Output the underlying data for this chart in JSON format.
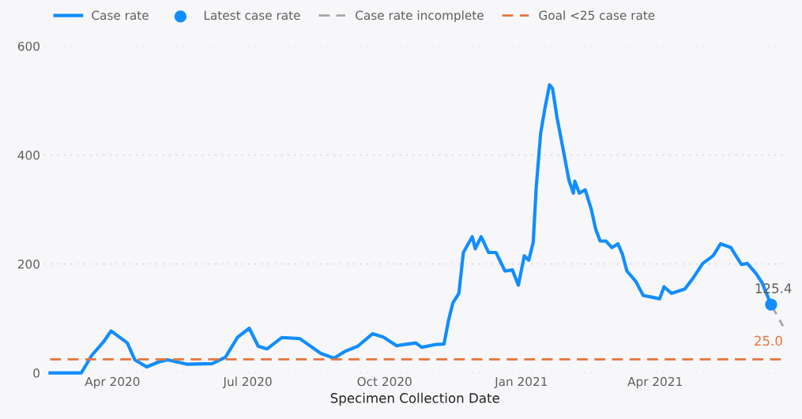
{
  "chart_data": {
    "type": "line",
    "xlabel": "Specimen Collection Date",
    "xlim": [
      "2020-02-15",
      "2021-06-28"
    ],
    "xticks": [
      {
        "value": "2020-04-01",
        "label": "Apr 2020"
      },
      {
        "value": "2020-07-01",
        "label": "Jul 2020"
      },
      {
        "value": "2020-10-01",
        "label": "Oct 2020"
      },
      {
        "value": "2021-01-01",
        "label": "Jan 2021"
      },
      {
        "value": "2021-04-01",
        "label": "Apr 2021"
      }
    ],
    "ylim": [
      0,
      600
    ],
    "yticks": [
      0,
      200,
      400,
      600
    ],
    "grid": "y",
    "legend": "top left",
    "series": [
      {
        "name": "Case rate",
        "type": "line",
        "color": "#118dff",
        "line_style": "solid",
        "x": [
          "2020-02-19",
          "2020-03-11",
          "2020-03-18",
          "2020-03-26",
          "2020-03-31",
          "2020-04-11",
          "2020-04-16",
          "2020-04-24",
          "2020-05-02",
          "2020-05-08",
          "2020-05-21",
          "2020-06-07",
          "2020-06-16",
          "2020-06-24",
          "2020-07-02",
          "2020-07-08",
          "2020-07-14",
          "2020-07-24",
          "2020-08-05",
          "2020-08-19",
          "2020-08-28",
          "2020-09-04",
          "2020-09-13",
          "2020-09-23",
          "2020-09-30",
          "2020-10-09",
          "2020-10-22",
          "2020-10-26",
          "2020-11-04",
          "2020-11-10",
          "2020-11-13",
          "2020-11-16",
          "2020-11-20",
          "2020-11-23",
          "2020-11-29",
          "2020-12-01",
          "2020-12-05",
          "2020-12-10",
          "2020-12-15",
          "2020-12-21",
          "2020-12-26",
          "2020-12-30",
          "2021-01-03",
          "2021-01-06",
          "2021-01-09",
          "2021-01-11",
          "2021-01-14",
          "2021-01-17",
          "2021-01-20",
          "2021-01-22",
          "2021-01-25",
          "2021-01-29",
          "2021-02-02",
          "2021-02-05",
          "2021-02-06",
          "2021-02-09",
          "2021-02-13",
          "2021-02-17",
          "2021-02-20",
          "2021-02-23",
          "2021-02-27",
          "2021-03-03",
          "2021-03-07",
          "2021-03-10",
          "2021-03-13",
          "2021-03-19",
          "2021-03-24",
          "2021-03-30",
          "2021-04-04",
          "2021-04-07",
          "2021-04-12",
          "2021-04-21",
          "2021-04-26",
          "2021-05-03",
          "2021-05-10",
          "2021-05-15",
          "2021-05-22",
          "2021-05-29",
          "2021-06-02",
          "2021-06-08",
          "2021-06-12",
          "2021-06-18"
        ],
        "values": [
          0,
          0,
          32,
          57,
          77,
          55,
          24,
          11,
          20,
          24,
          16,
          17,
          29,
          65,
          82,
          49,
          44,
          65,
          63,
          36,
          27,
          39,
          49,
          72,
          66,
          50,
          55,
          47,
          52,
          53,
          96,
          129,
          146,
          221,
          250,
          228,
          250,
          221,
          221,
          187,
          189,
          161,
          215,
          207,
          240,
          340,
          440,
          488,
          529,
          522,
          469,
          412,
          354,
          330,
          352,
          330,
          336,
          301,
          264,
          242,
          242,
          230,
          237,
          218,
          187,
          168,
          142,
          139,
          136,
          158,
          146,
          154,
          172,
          201,
          215,
          237,
          230,
          199,
          201,
          182,
          165,
          125.4
        ]
      },
      {
        "name": "Latest case rate",
        "type": "scatter",
        "color": "#118dff",
        "marker": "circle",
        "x": [
          "2021-06-18"
        ],
        "values": [
          125.4
        ],
        "value_labels": [
          "125.4"
        ]
      },
      {
        "name": "Case rate incomplete",
        "type": "line",
        "color": "#a6a6a6",
        "line_style": "dashed",
        "x": [
          "2021-06-18",
          "2021-06-26"
        ],
        "values": [
          125.4,
          86
        ]
      },
      {
        "name": "Goal <25 case rate",
        "type": "line",
        "color": "#e8743b",
        "line_style": "dashed",
        "x": [
          "2020-02-19",
          "2021-06-26"
        ],
        "values": [
          25,
          25
        ],
        "value_labels": [
          null,
          "25.0"
        ]
      }
    ]
  }
}
